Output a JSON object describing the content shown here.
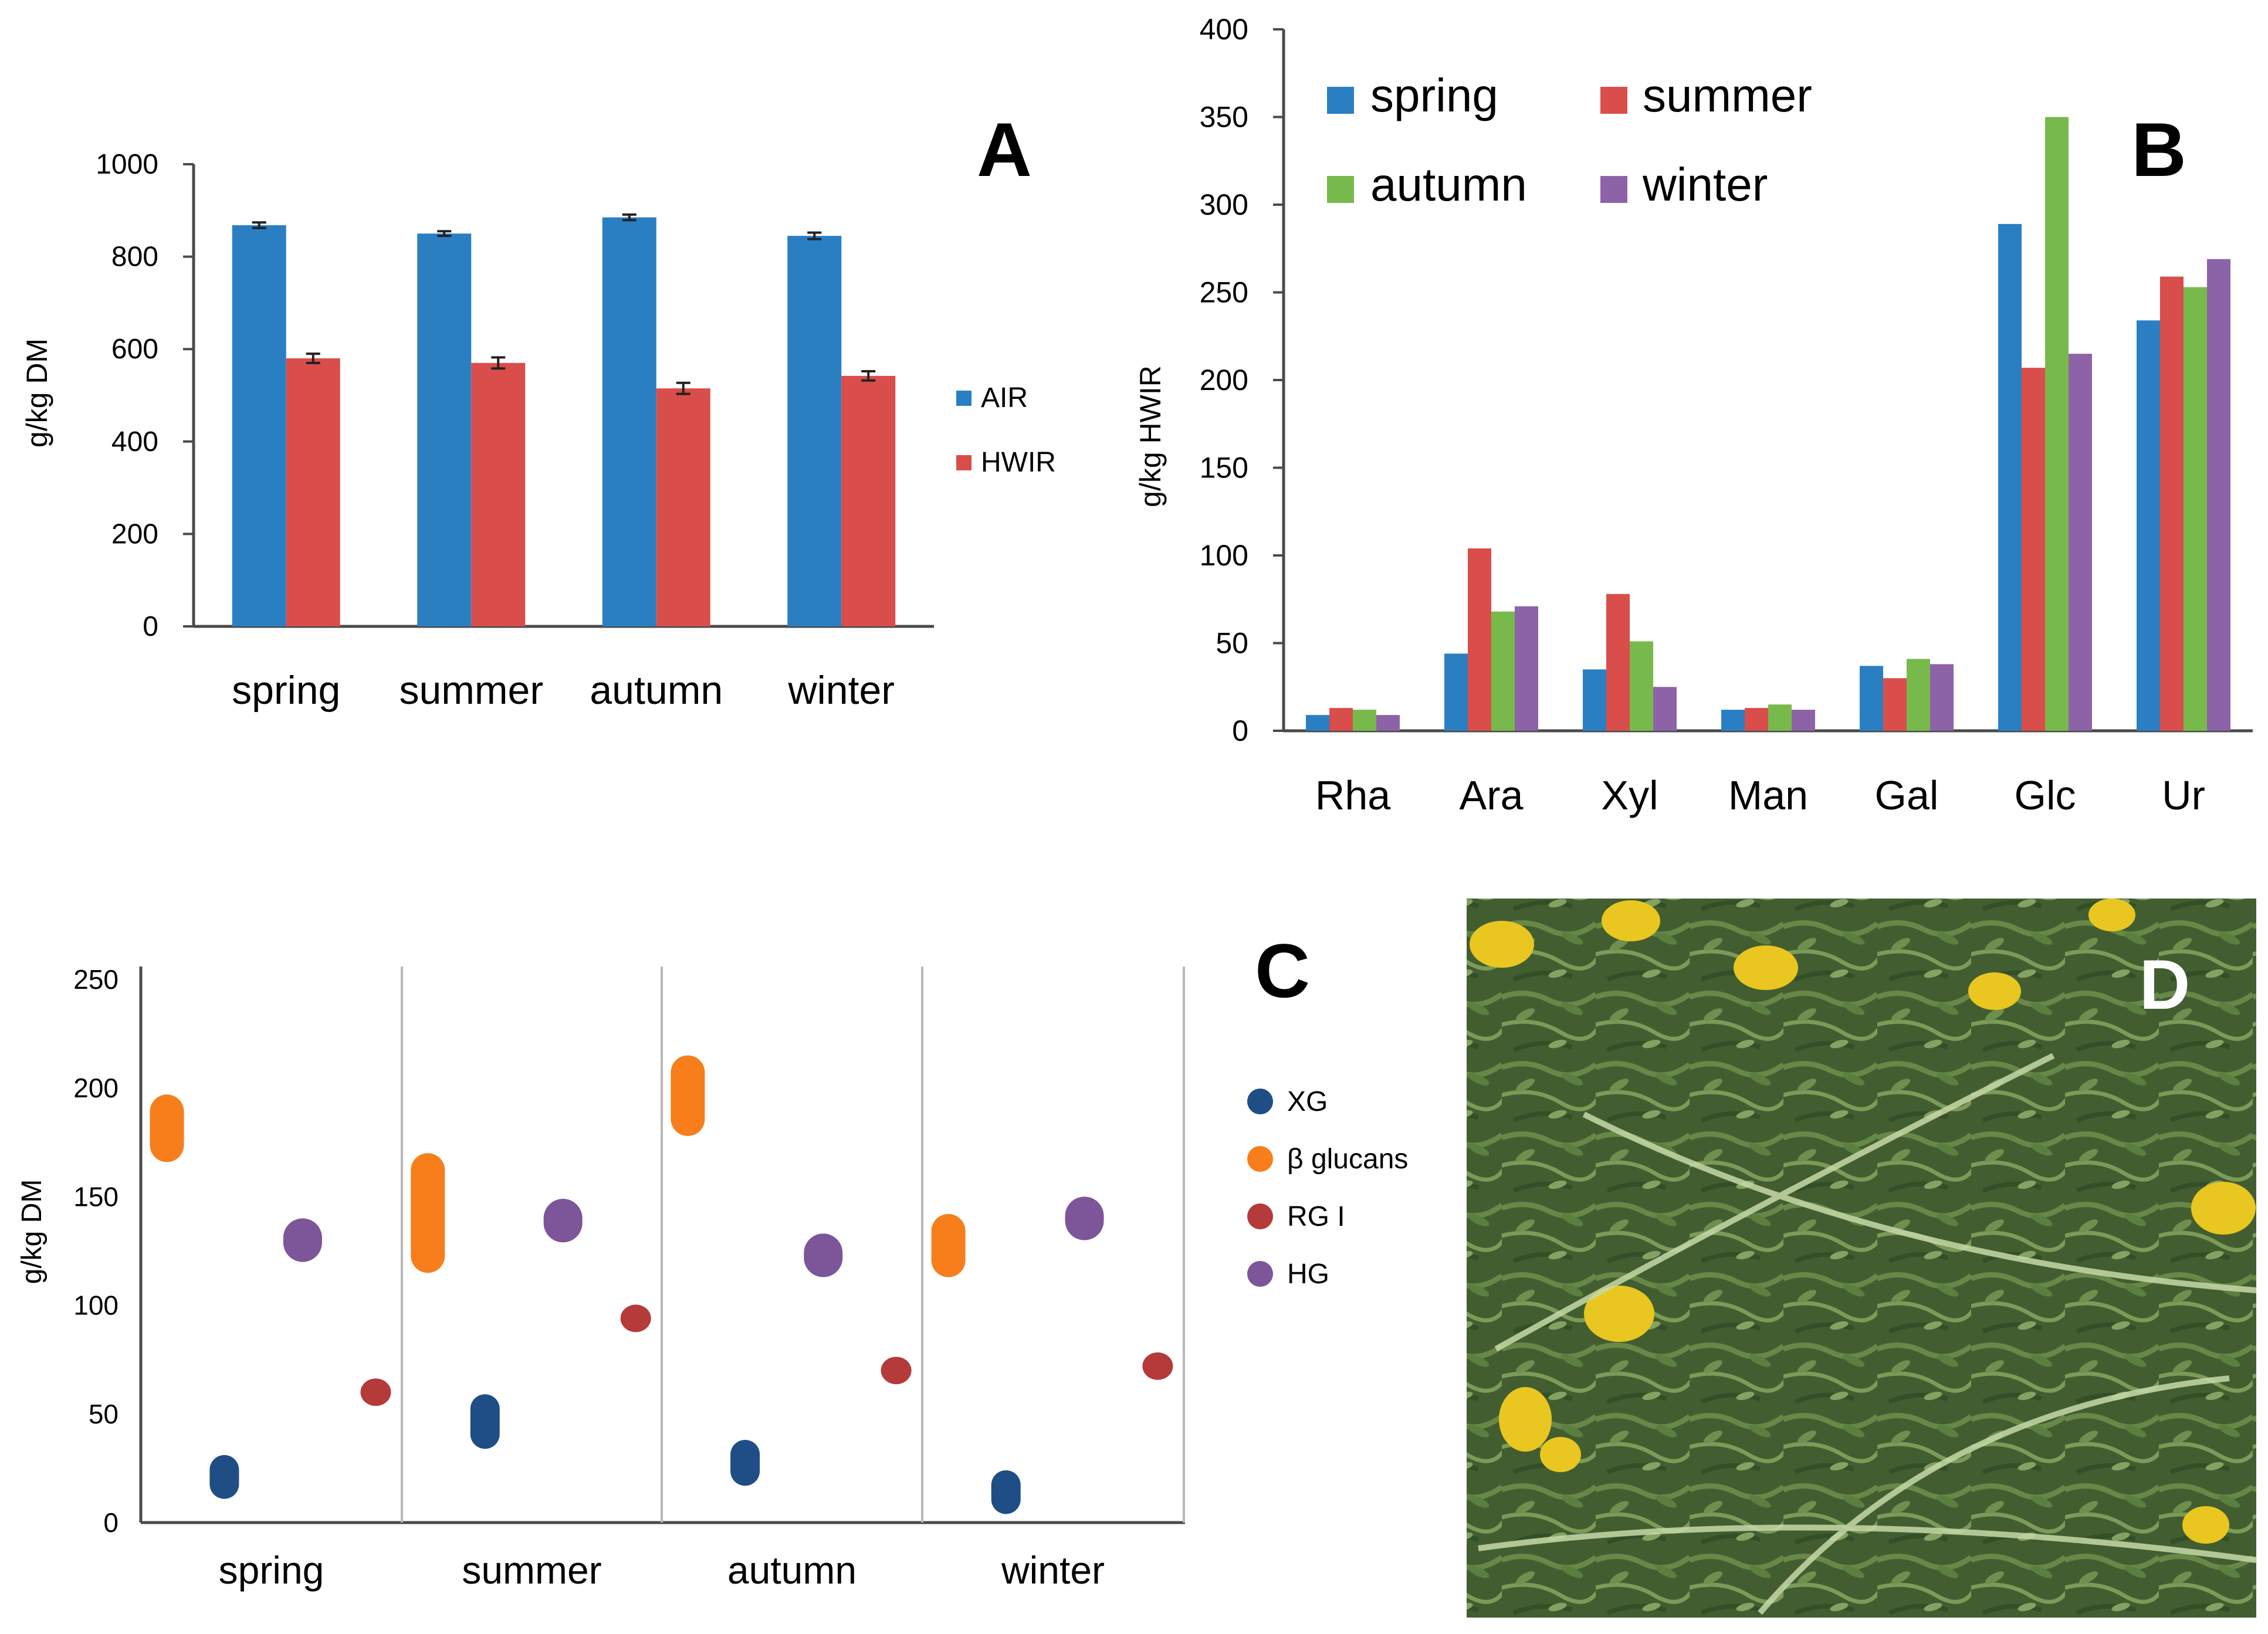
{
  "colors": {
    "spring": "#2a7fc3",
    "summer": "#d94e4a",
    "autumn": "#78b94c",
    "winter": "#8d63a8",
    "air": "#2a7fc3",
    "hwir": "#d94e4a",
    "xg": "#1f4e86",
    "beta_glucans": "#f77e1b",
    "rg1": "#b53a3a",
    "hg": "#7d5599",
    "axis": "#4a4a4a",
    "grid_divider": "#b8b8b8",
    "text": "#111111"
  },
  "chart_data": [
    {
      "panel": "A",
      "type": "bar",
      "panel_label": "A",
      "ylabel": "g/kg DM",
      "ylim": [
        0,
        1000
      ],
      "yticks": [
        "0",
        "200",
        "400",
        "600",
        "800",
        "1000"
      ],
      "categories": [
        "spring",
        "summer",
        "autumn",
        "winter"
      ],
      "series": [
        {
          "name": "AIR",
          "values": [
            868,
            850,
            885,
            845
          ],
          "errors": [
            6,
            5,
            6,
            7
          ]
        },
        {
          "name": "HWIR",
          "values": [
            580,
            570,
            515,
            542
          ],
          "errors": [
            10,
            12,
            12,
            10
          ]
        }
      ],
      "legend": "right"
    },
    {
      "panel": "B",
      "type": "bar",
      "panel_label": "B",
      "ylabel": "g/kg HWIR",
      "ylim": [
        0,
        400
      ],
      "yticks": [
        "0",
        "50",
        "100",
        "150",
        "200",
        "250",
        "300",
        "350",
        "400"
      ],
      "categories": [
        "Rha",
        "Ara",
        "Xyl",
        "Man",
        "Gal",
        "Glc",
        "Ur"
      ],
      "series": [
        {
          "name": "spring",
          "values": [
            9,
            44,
            35,
            12,
            37,
            289,
            234
          ]
        },
        {
          "name": "summer",
          "values": [
            13,
            104,
            78,
            13,
            30,
            207,
            259
          ]
        },
        {
          "name": "autumn",
          "values": [
            12,
            68,
            51,
            15,
            41,
            350,
            253
          ]
        },
        {
          "name": "winter",
          "values": [
            9,
            71,
            25,
            12,
            38,
            215,
            269
          ]
        }
      ],
      "legend": "top-left"
    },
    {
      "panel": "C",
      "type": "scatter",
      "panel_label": "C",
      "ylabel": "g/kg DM",
      "ylim": [
        0,
        250
      ],
      "yticks": [
        "0",
        "50",
        "100",
        "150",
        "200",
        "250"
      ],
      "categories": [
        "spring",
        "summer",
        "autumn",
        "winter"
      ],
      "series": [
        {
          "name": "XG",
          "ranges": [
            [
              17,
              25
            ],
            [
              40,
              53
            ],
            [
              23,
              32
            ],
            [
              10,
              18
            ]
          ]
        },
        {
          "name": "β glucans",
          "ranges": [
            [
              173,
              190
            ],
            [
              122,
              163
            ],
            [
              185,
              208
            ],
            [
              120,
              135
            ]
          ]
        },
        {
          "name": "RG I",
          "ranges": [
            [
              60,
              60
            ],
            [
              94,
              94
            ],
            [
              70,
              70
            ],
            [
              72,
              72
            ]
          ]
        },
        {
          "name": "HG",
          "ranges": [
            [
              128,
              132
            ],
            [
              137,
              141
            ],
            [
              121,
              125
            ],
            [
              138,
              142
            ]
          ]
        }
      ],
      "legend": "right"
    }
  ],
  "panel_d": {
    "label": "D",
    "alt": "photograph of green forage with yellow flowers"
  }
}
